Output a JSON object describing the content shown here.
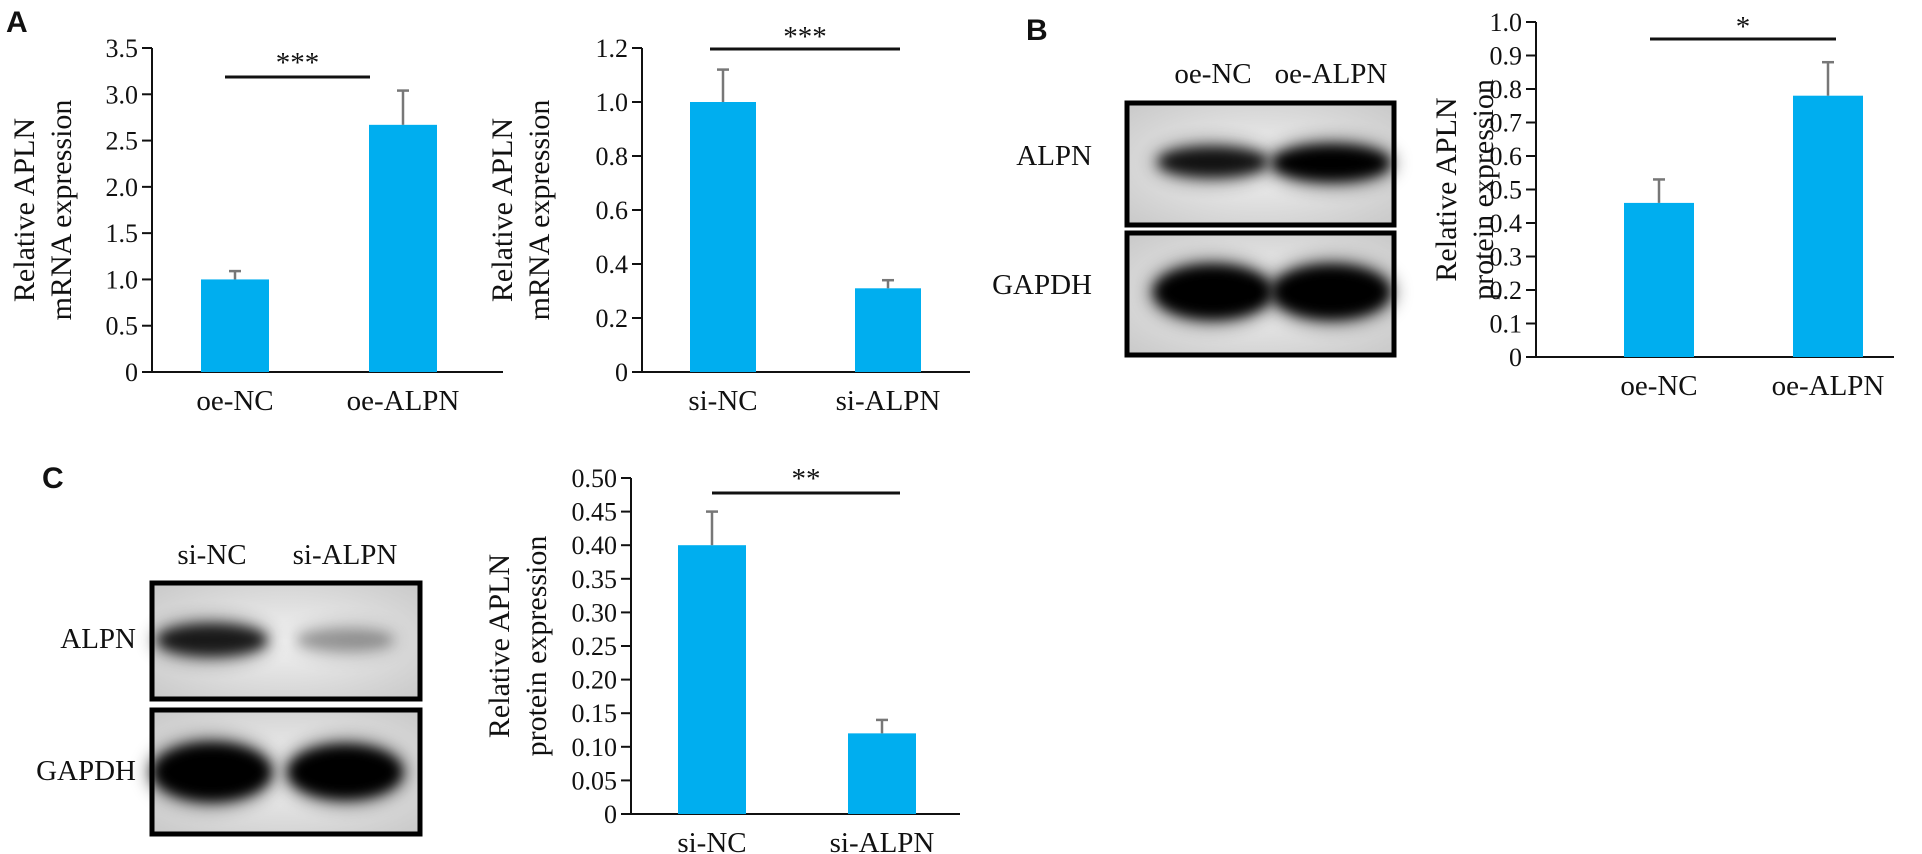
{
  "panel_letters": {
    "A": "A",
    "B": "B",
    "C": "C"
  },
  "colors": {
    "bar": "#00AEEF",
    "error": "#777777",
    "axis": "#111111"
  },
  "chart_data": [
    {
      "id": "A1",
      "type": "bar",
      "categories": [
        "oe-NC",
        "oe-ALPN"
      ],
      "values": [
        1.0,
        2.67
      ],
      "errors": [
        0.09,
        0.37
      ],
      "ylabel_lines": [
        "Relative APLN",
        "mRNA expression"
      ],
      "ylim": [
        0,
        3.5
      ],
      "yticks": [
        "0",
        "0.5",
        "1.0",
        "1.5",
        "2.0",
        "2.5",
        "3.0",
        "3.5"
      ],
      "significance": "***"
    },
    {
      "id": "A2",
      "type": "bar",
      "categories": [
        "si-NC",
        "si-ALPN"
      ],
      "values": [
        1.0,
        0.31
      ],
      "errors": [
        0.12,
        0.03
      ],
      "ylabel_lines": [
        "Relative APLN",
        "mRNA expression"
      ],
      "ylim": [
        0,
        1.2
      ],
      "yticks": [
        "0",
        "0.2",
        "0.4",
        "0.6",
        "0.8",
        "1.0",
        "1.2"
      ],
      "significance": "***"
    },
    {
      "id": "B",
      "type": "bar",
      "categories": [
        "oe-NC",
        "oe-ALPN"
      ],
      "values": [
        0.46,
        0.78
      ],
      "errors": [
        0.07,
        0.1
      ],
      "ylabel_lines": [
        "Relative APLN",
        "protein expression"
      ],
      "ylim": [
        0,
        1.0
      ],
      "yticks": [
        "0",
        "0.1",
        "0.2",
        "0.3",
        "0.4",
        "0.5",
        "0.6",
        "0.7",
        "0.8",
        "0.9",
        "1.0"
      ],
      "significance": "*"
    },
    {
      "id": "C",
      "type": "bar",
      "categories": [
        "si-NC",
        "si-ALPN"
      ],
      "values": [
        0.4,
        0.12
      ],
      "errors": [
        0.05,
        0.02
      ],
      "ylabel_lines": [
        "Relative APLN",
        "protein expression"
      ],
      "ylim": [
        0,
        0.5
      ],
      "yticks": [
        "0",
        "0.05",
        "0.10",
        "0.15",
        "0.20",
        "0.25",
        "0.30",
        "0.35",
        "0.40",
        "0.45",
        "0.50"
      ],
      "significance": "**"
    }
  ],
  "blots": {
    "B": {
      "lanes": [
        "oe-NC",
        "oe-ALPN"
      ],
      "rows": [
        {
          "label": "ALPN",
          "intensity": [
            0.85,
            1.0
          ]
        },
        {
          "label": "GAPDH",
          "intensity": [
            1.0,
            1.0
          ]
        }
      ]
    },
    "C": {
      "lanes": [
        "si-NC",
        "si-ALPN"
      ],
      "rows": [
        {
          "label": "ALPN",
          "intensity": [
            0.8,
            0.25
          ]
        },
        {
          "label": "GAPDH",
          "intensity": [
            1.0,
            1.0
          ]
        }
      ]
    }
  }
}
